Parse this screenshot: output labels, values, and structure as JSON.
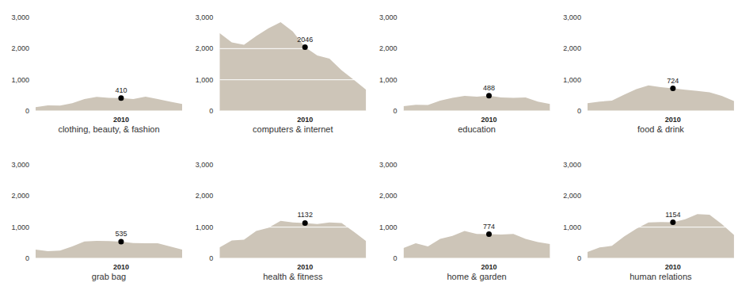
{
  "chart_data": [
    {
      "type": "area",
      "title": "clothing, beauty, & fashion",
      "categories": [
        null,
        null,
        null,
        null,
        null,
        null,
        null,
        "2010",
        null,
        null,
        null,
        null,
        null
      ],
      "values": [
        120,
        180,
        170,
        250,
        380,
        450,
        420,
        410,
        380,
        460,
        380,
        300,
        220
      ],
      "color": "#cdc5b8",
      "ylim": [
        0,
        3000
      ],
      "yticks": [
        0,
        {
          "value": 1000,
          "label": "1,000"
        },
        {
          "value": 2000,
          "label": "2,000"
        },
        {
          "value": 3000,
          "label": "3,000"
        }
      ],
      "grid": true
    },
    {
      "type": "area",
      "title": "computers & internet",
      "categories": [
        null,
        null,
        null,
        null,
        null,
        null,
        null,
        "2010",
        null,
        null,
        null,
        null,
        null
      ],
      "values": [
        2500,
        2200,
        2120,
        2400,
        2650,
        2850,
        2550,
        2046,
        1780,
        1680,
        1300,
        1000,
        680
      ],
      "color": "#cdc5b8",
      "ylim": [
        0,
        3000
      ],
      "yticks": [
        0,
        {
          "value": 1000,
          "label": "1,000"
        },
        {
          "value": 2000,
          "label": "2,000"
        },
        {
          "value": 3000,
          "label": "3,000"
        }
      ],
      "grid": true
    },
    {
      "type": "area",
      "title": "education",
      "categories": [
        null,
        null,
        null,
        null,
        null,
        null,
        null,
        "2010",
        null,
        null,
        null,
        null,
        null
      ],
      "values": [
        150,
        200,
        190,
        330,
        420,
        480,
        460,
        488,
        430,
        420,
        430,
        300,
        220
      ],
      "color": "#cdc5b8",
      "ylim": [
        0,
        3000
      ],
      "yticks": [
        0,
        {
          "value": 1000,
          "label": "1,000"
        },
        {
          "value": 2000,
          "label": "2,000"
        },
        {
          "value": 3000,
          "label": "3,000"
        }
      ],
      "grid": true
    },
    {
      "type": "area",
      "title": "food & drink",
      "categories": [
        null,
        null,
        null,
        null,
        null,
        null,
        null,
        "2010",
        null,
        null,
        null,
        null,
        null
      ],
      "values": [
        250,
        300,
        330,
        520,
        700,
        820,
        760,
        724,
        680,
        640,
        600,
        480,
        320
      ],
      "color": "#cdc5b8",
      "ylim": [
        0,
        3000
      ],
      "yticks": [
        0,
        {
          "value": 1000,
          "label": "1,000"
        },
        {
          "value": 2000,
          "label": "2,000"
        },
        {
          "value": 3000,
          "label": "3,000"
        }
      ],
      "grid": true
    },
    {
      "type": "area",
      "title": "grab bag",
      "categories": [
        null,
        null,
        null,
        null,
        null,
        null,
        null,
        "2010",
        null,
        null,
        null,
        null,
        null
      ],
      "values": [
        280,
        230,
        250,
        380,
        540,
        560,
        550,
        535,
        490,
        480,
        480,
        380,
        280
      ],
      "color": "#cdc5b8",
      "ylim": [
        0,
        3000
      ],
      "yticks": [
        0,
        {
          "value": 1000,
          "label": "1,000"
        },
        {
          "value": 2000,
          "label": "2,000"
        },
        {
          "value": 3000,
          "label": "3,000"
        }
      ],
      "grid": true
    },
    {
      "type": "area",
      "title": "health & fitness",
      "categories": [
        null,
        null,
        null,
        null,
        null,
        null,
        null,
        "2010",
        null,
        null,
        null,
        null,
        null
      ],
      "values": [
        350,
        570,
        600,
        880,
        980,
        1200,
        1150,
        1132,
        1100,
        1150,
        1130,
        850,
        550
      ],
      "color": "#cdc5b8",
      "ylim": [
        0,
        3000
      ],
      "yticks": [
        0,
        {
          "value": 1000,
          "label": "1,000"
        },
        {
          "value": 2000,
          "label": "2,000"
        },
        {
          "value": 3000,
          "label": "3,000"
        }
      ],
      "grid": true
    },
    {
      "type": "area",
      "title": "home & garden",
      "categories": [
        null,
        null,
        null,
        null,
        null,
        null,
        null,
        "2010",
        null,
        null,
        null,
        null,
        null
      ],
      "values": [
        330,
        480,
        380,
        620,
        720,
        880,
        780,
        774,
        760,
        780,
        620,
        520,
        460
      ],
      "color": "#cdc5b8",
      "ylim": [
        0,
        3000
      ],
      "yticks": [
        0,
        {
          "value": 1000,
          "label": "1,000"
        },
        {
          "value": 2000,
          "label": "2,000"
        },
        {
          "value": 3000,
          "label": "3,000"
        }
      ],
      "grid": true
    },
    {
      "type": "area",
      "title": "human relations",
      "categories": [
        null,
        null,
        null,
        null,
        null,
        null,
        null,
        "2010",
        null,
        null,
        null,
        null,
        null
      ],
      "values": [
        200,
        350,
        400,
        700,
        950,
        1150,
        1160,
        1154,
        1250,
        1420,
        1400,
        1100,
        750
      ],
      "color": "#cdc5b8",
      "ylim": [
        0,
        3000
      ],
      "yticks": [
        0,
        {
          "value": 1000,
          "label": "1,000"
        },
        {
          "value": 2000,
          "label": "2,000"
        },
        {
          "value": 3000,
          "label": "3,000"
        }
      ],
      "grid": true
    }
  ]
}
